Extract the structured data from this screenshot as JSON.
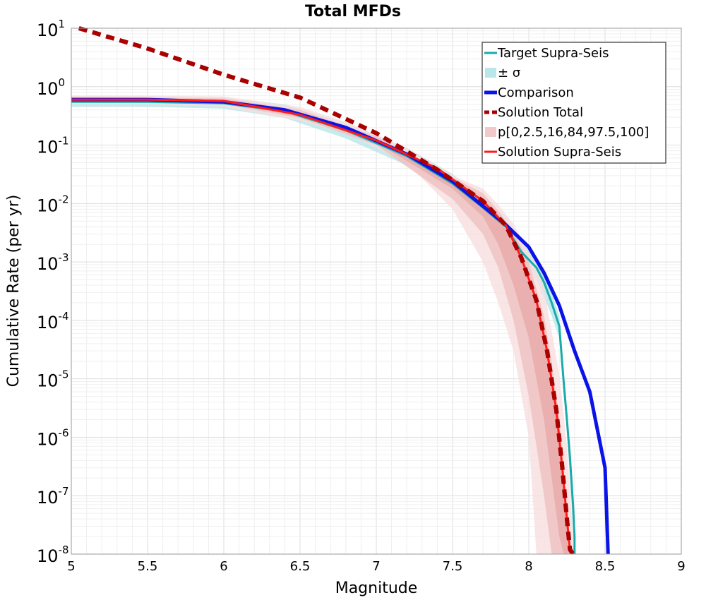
{
  "chart_data": {
    "type": "line",
    "title": "Total MFDs",
    "xlabel": "Magnitude",
    "ylabel": "Cumulative Rate (per yr)",
    "xlim": [
      5,
      9
    ],
    "ylim": [
      1e-08,
      10
    ],
    "yscale": "log",
    "x_ticks": [
      "5",
      "5.5",
      "6",
      "6.5",
      "7",
      "7.5",
      "8",
      "8.5",
      "9"
    ],
    "y_ticks": [
      {
        "base": "10",
        "exp": "1"
      },
      {
        "base": "10",
        "exp": "0"
      },
      {
        "base": "10",
        "exp": "-1"
      },
      {
        "base": "10",
        "exp": "-2"
      },
      {
        "base": "10",
        "exp": "-3"
      },
      {
        "base": "10",
        "exp": "-4"
      },
      {
        "base": "10",
        "exp": "-5"
      },
      {
        "base": "10",
        "exp": "-6"
      },
      {
        "base": "10",
        "exp": "-7"
      },
      {
        "base": "10",
        "exp": "-8"
      }
    ],
    "grid": true,
    "legend_position": "top-right",
    "legend": [
      {
        "label": "Target Supra-Seis",
        "color": "#1aaaaa",
        "style": "solid-thin"
      },
      {
        "label": "± σ",
        "color": "#b8e6ea",
        "style": "band"
      },
      {
        "label": "Comparison",
        "color": "#0a14e6",
        "style": "solid-thick"
      },
      {
        "label": "Solution Total",
        "color": "#aa0000",
        "style": "dashed"
      },
      {
        "label": "p[0,2.5,16,84,97.5,100]",
        "color": "#f2c9c9",
        "style": "band"
      },
      {
        "label": "Solution Supra-Seis",
        "color": "#ff1a1a",
        "style": "solid"
      }
    ],
    "series": [
      {
        "name": "Solution Total",
        "color": "#aa0000",
        "x": [
          5.05,
          5.5,
          6.0,
          6.5,
          7.0,
          7.4,
          7.7,
          7.85,
          7.95,
          8.05,
          8.12,
          8.18,
          8.22,
          8.25,
          8.27,
          8.29
        ],
        "y": [
          10,
          4.5,
          1.6,
          0.65,
          0.16,
          0.038,
          0.011,
          0.0042,
          0.0012,
          0.00022,
          3e-05,
          3e-06,
          3e-07,
          4e-08,
          1.2e-08,
          1e-08
        ]
      },
      {
        "name": "Target Supra-Seis",
        "color": "#1aaaaa",
        "x": [
          5.0,
          5.5,
          6.0,
          6.4,
          6.8,
          7.2,
          7.5,
          7.7,
          7.85,
          7.95,
          8.05,
          8.1,
          8.15,
          8.2,
          8.23,
          8.25,
          8.27,
          8.29,
          8.3,
          8.3
        ],
        "y": [
          0.55,
          0.55,
          0.52,
          0.38,
          0.18,
          0.065,
          0.022,
          0.0085,
          0.004,
          0.0015,
          0.0008,
          0.00045,
          0.0002,
          8e-05,
          8e-06,
          2e-06,
          4.5e-07,
          7e-08,
          2e-08,
          1e-08
        ]
      },
      {
        "name": "Comparison",
        "color": "#0a14e6",
        "x": [
          5.0,
          5.5,
          6.0,
          6.4,
          6.8,
          7.2,
          7.5,
          7.7,
          7.85,
          8.0,
          8.1,
          8.2,
          8.3,
          8.4,
          8.5,
          8.52
        ],
        "y": [
          0.6,
          0.6,
          0.55,
          0.4,
          0.2,
          0.07,
          0.024,
          0.009,
          0.0043,
          0.0018,
          0.00065,
          0.00018,
          3e-05,
          6e-06,
          3e-07,
          1e-08
        ]
      },
      {
        "name": "Solution Supra-Seis",
        "color": "#ff1a1a",
        "x": [
          5.0,
          5.5,
          6.0,
          6.5,
          7.0,
          7.4,
          7.7,
          7.85,
          7.95,
          8.05,
          8.12,
          8.18,
          8.22,
          8.25,
          8.27,
          8.29
        ],
        "y": [
          0.6,
          0.6,
          0.57,
          0.33,
          0.12,
          0.04,
          0.011,
          0.0042,
          0.0012,
          0.00022,
          3e-05,
          3e-06,
          3e-07,
          4e-08,
          1.2e-08,
          1e-08
        ]
      }
    ],
    "bands": [
      {
        "name": "Target ± σ",
        "color": "#b8e6ea",
        "x": [
          5.0,
          5.5,
          6.0,
          6.4,
          6.8,
          7.2,
          7.5,
          7.7,
          7.85,
          7.95,
          8.05,
          8.15,
          8.2,
          8.25,
          8.3
        ],
        "lower": [
          0.45,
          0.45,
          0.42,
          0.29,
          0.13,
          0.045,
          0.015,
          0.0058,
          0.0027,
          0.001,
          0.0005,
          0.00012,
          5e-05,
          1.2e-06,
          1e-08
        ],
        "upper": [
          0.68,
          0.68,
          0.65,
          0.5,
          0.24,
          0.09,
          0.032,
          0.012,
          0.0058,
          0.0022,
          0.0012,
          0.0003,
          0.00012,
          3e-06,
          3e-08
        ]
      },
      {
        "name": "p[0,100]",
        "color": "#f7dede",
        "x": [
          5.0,
          5.5,
          6.0,
          6.5,
          6.8,
          7.2,
          7.5,
          7.7,
          7.8,
          7.9,
          8.0,
          8.05,
          8.1,
          8.2,
          8.25,
          8.3
        ],
        "lower": [
          0.5,
          0.5,
          0.45,
          0.26,
          0.16,
          0.05,
          0.008,
          0.001,
          0.0002,
          3e-05,
          1e-06,
          1e-08,
          1e-08,
          1e-08,
          1e-08,
          1e-08
        ],
        "upper": [
          0.7,
          0.7,
          0.68,
          0.45,
          0.25,
          0.09,
          0.03,
          0.018,
          0.0095,
          0.0045,
          0.0015,
          0.0009,
          0.00035,
          1.2e-05,
          7e-07,
          1e-08
        ]
      },
      {
        "name": "p[2.5,97.5]",
        "color": "#efc0c0",
        "x": [
          5.0,
          6.0,
          6.5,
          7.0,
          7.5,
          7.7,
          7.8,
          7.9,
          8.0,
          8.1,
          8.15,
          8.2,
          8.25
        ],
        "lower": [
          0.55,
          0.5,
          0.29,
          0.1,
          0.012,
          0.003,
          0.0008,
          0.0001,
          5e-06,
          1e-07,
          1e-08,
          1e-08,
          1e-08
        ],
        "upper": [
          0.66,
          0.63,
          0.4,
          0.14,
          0.028,
          0.015,
          0.0075,
          0.0032,
          0.001,
          0.00012,
          2e-05,
          2e-06,
          5e-08
        ]
      },
      {
        "name": "p[16,84]",
        "color": "#e8a9a9",
        "x": [
          5.0,
          6.0,
          6.5,
          7.0,
          7.5,
          7.7,
          7.8,
          7.9,
          8.0,
          8.1,
          8.15,
          8.2,
          8.23,
          8.27
        ],
        "lower": [
          0.58,
          0.54,
          0.31,
          0.11,
          0.018,
          0.006,
          0.002,
          0.0004,
          5e-05,
          2e-06,
          2e-07,
          2e-08,
          1e-08,
          1e-08
        ],
        "upper": [
          0.63,
          0.6,
          0.36,
          0.13,
          0.024,
          0.012,
          0.0055,
          0.0022,
          0.0006,
          7e-05,
          1.2e-05,
          1.2e-06,
          1e-07,
          1e-08
        ]
      }
    ]
  }
}
